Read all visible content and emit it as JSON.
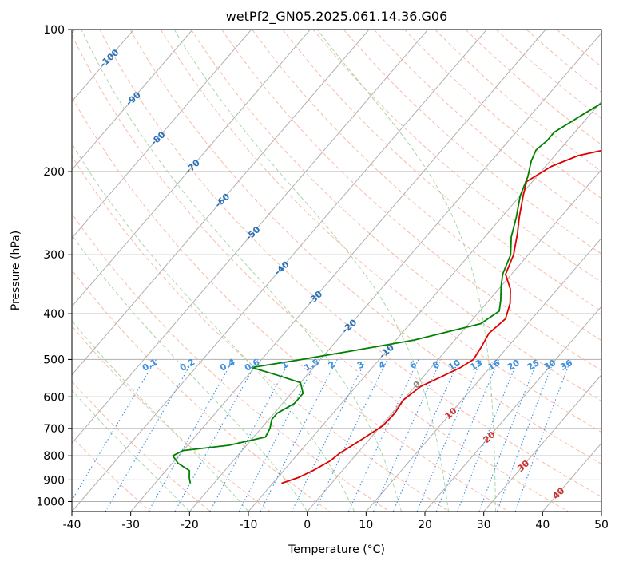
{
  "chart_data": {
    "type": "line",
    "title": "wetPf2_GN05.2025.061.14.36.G06",
    "xlabel": "Temperature (°C)",
    "ylabel": "Pressure (hPa)",
    "xlim": [
      -40,
      50
    ],
    "ylim": [
      1050,
      100
    ],
    "y_scale": "log",
    "x_ticks": [
      "-40",
      "-30",
      "-20",
      "-10",
      "0",
      "10",
      "20",
      "30",
      "40",
      "50"
    ],
    "y_ticks": [
      "100",
      "200",
      "300",
      "400",
      "500",
      "600",
      "700",
      "800",
      "900",
      "1000"
    ],
    "grid": true,
    "colors": {
      "temperature": "#e00000",
      "dewpoint": "#008000",
      "isotherm": "#b0b0b0",
      "dry_adiabat": "#f4a58a",
      "moist_adiabat": "#9fd39f",
      "mixing_ratio": "#3d8fe0",
      "adiabat_label": "#2a72b8",
      "special": "#c8b090"
    },
    "series": [
      {
        "name": "",
        "kind": "temperature",
        "points": [
          [
            -8.5,
            915
          ],
          [
            -6.5,
            890
          ],
          [
            -5,
            860
          ],
          [
            -3.5,
            820
          ],
          [
            -3,
            790
          ],
          [
            -2,
            760
          ],
          [
            -1,
            730
          ],
          [
            0.3,
            690
          ],
          [
            0.5,
            650
          ],
          [
            0,
            610
          ],
          [
            1,
            570
          ],
          [
            3,
            545
          ],
          [
            5,
            520
          ],
          [
            6,
            500
          ],
          [
            5.5,
            470
          ],
          [
            4.8,
            440
          ],
          [
            5.5,
            410
          ],
          [
            4,
            380
          ],
          [
            2,
            355
          ],
          [
            -1,
            330
          ],
          [
            -2.5,
            300
          ],
          [
            -5,
            270
          ],
          [
            -7,
            250
          ],
          [
            -9.5,
            225
          ],
          [
            -11,
            210
          ],
          [
            -9,
            195
          ],
          [
            -6,
            185
          ],
          [
            -1,
            178
          ],
          [
            3,
            175
          ],
          [
            5,
            170
          ],
          [
            7,
            160
          ],
          [
            9,
            148
          ],
          [
            11,
            137
          ],
          [
            14,
            125
          ],
          [
            17,
            113
          ],
          [
            19.5,
            104
          ],
          [
            21,
            100
          ]
        ]
      },
      {
        "name": "",
        "kind": "dewpoint",
        "points": [
          [
            -24,
            915
          ],
          [
            -25,
            890
          ],
          [
            -26,
            860
          ],
          [
            -29,
            830
          ],
          [
            -31,
            800
          ],
          [
            -30,
            780
          ],
          [
            -23,
            760
          ],
          [
            -18,
            730
          ],
          [
            -18.5,
            700
          ],
          [
            -19.5,
            670
          ],
          [
            -19.5,
            650
          ],
          [
            -18,
            620
          ],
          [
            -18,
            590
          ],
          [
            -20,
            560
          ],
          [
            -25,
            540
          ],
          [
            -30.5,
            520
          ],
          [
            -25,
            505
          ],
          [
            -16,
            480
          ],
          [
            -7,
            455
          ],
          [
            2,
            420
          ],
          [
            3.3,
            395
          ],
          [
            2,
            375
          ],
          [
            0,
            350
          ],
          [
            -1.5,
            330
          ],
          [
            -3,
            300
          ],
          [
            -5.5,
            275
          ],
          [
            -7.5,
            250
          ],
          [
            -10,
            225
          ],
          [
            -11.5,
            205
          ],
          [
            -13.2,
            190
          ],
          [
            -14,
            180
          ],
          [
            -13.5,
            172
          ],
          [
            -13.5,
            165
          ],
          [
            -11,
            150
          ],
          [
            -8,
            135
          ],
          [
            -5,
            122
          ],
          [
            -3,
            112
          ],
          [
            -1.2,
            103
          ],
          [
            -0.3,
            100
          ]
        ]
      }
    ],
    "dry_adiabat_labels": [
      "-100",
      "-90",
      "-80",
      "-70",
      "-60",
      "-50",
      "-40",
      "-30",
      "-20",
      "-10",
      "0",
      "10",
      "20",
      "30",
      "40"
    ],
    "mixing_ratio_labels": [
      "0.1",
      "0.2",
      "0.4",
      "0.6",
      "1",
      "1.5",
      "2",
      "3",
      "4",
      "6",
      "8",
      "10",
      "13",
      "16",
      "20",
      "25",
      "30",
      "36"
    ]
  }
}
